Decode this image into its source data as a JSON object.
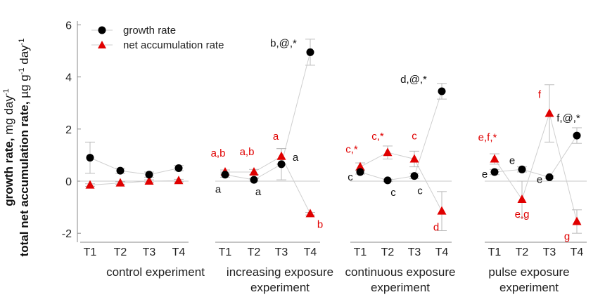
{
  "chart_data": {
    "type": "scatter",
    "ylabel_line1": "growth rate,",
    "ylabel_line1_unit": "mg day",
    "ylabel_line1_sup": "-1",
    "ylabel_line2": "total net accumulation rate,",
    "ylabel_line2_unit": "µg g",
    "ylabel_line2_sup1": "-1",
    "ylabel_line2_mid": " day",
    "ylabel_line2_sup2": "-1",
    "ylim": [
      -2.5,
      6.5
    ],
    "yticks": [
      -2,
      0,
      2,
      4,
      6
    ],
    "legend": [
      {
        "name": "growth rate",
        "marker": "circle",
        "color": "#000000"
      },
      {
        "name": "net accumulation rate",
        "marker": "triangle",
        "color": "#e00000"
      }
    ],
    "groups": [
      {
        "label_lines": [
          "control experiment"
        ],
        "categories": [
          "T1",
          "T2",
          "T3",
          "T4"
        ],
        "growth": [
          0.9,
          0.4,
          0.25,
          0.5
        ],
        "growth_err": [
          0.6,
          0.1,
          0.1,
          0.1
        ],
        "growth_labels": [
          "",
          "",
          "",
          ""
        ],
        "accum": [
          -0.15,
          -0.07,
          0.0,
          0.02
        ],
        "accum_err": [
          0.05,
          0.05,
          0.05,
          0.05
        ],
        "accum_labels": [
          "",
          "",
          "",
          ""
        ]
      },
      {
        "label_lines": [
          "increasing exposure",
          "experiment"
        ],
        "categories": [
          "T1",
          "T2",
          "T3",
          "T4"
        ],
        "growth": [
          0.25,
          0.05,
          0.65,
          4.95
        ],
        "growth_err": [
          0.1,
          0.05,
          0.6,
          0.5
        ],
        "growth_labels": [
          "a",
          "a",
          "a",
          "b,@,*"
        ],
        "accum": [
          0.35,
          0.35,
          0.95,
          -1.25
        ],
        "accum_err": [
          0.08,
          0.1,
          0.3,
          0.05
        ],
        "accum_labels": [
          "a,b",
          "a,b",
          "a",
          "b"
        ]
      },
      {
        "label_lines": [
          "continuous exposure",
          "experiment"
        ],
        "categories": [
          "T1",
          "T2",
          "T3",
          "T4"
        ],
        "growth": [
          0.35,
          0.03,
          0.2,
          3.45
        ],
        "growth_err": [
          0.08,
          0.05,
          0.1,
          0.3
        ],
        "growth_labels": [
          "c",
          "c",
          "c",
          "d,@,*"
        ],
        "accum": [
          0.55,
          1.1,
          0.85,
          -1.15
        ],
        "accum_err": [
          0.15,
          0.25,
          0.3,
          0.75
        ],
        "accum_labels": [
          "c,*",
          "c,*",
          "c",
          "d"
        ]
      },
      {
        "label_lines": [
          "pulse exposure",
          "experiment"
        ],
        "categories": [
          "T1",
          "T2",
          "T3",
          "T4"
        ],
        "growth": [
          0.35,
          0.45,
          0.15,
          1.75
        ],
        "growth_err": [
          0.1,
          0.1,
          0.05,
          0.3
        ],
        "growth_labels": [
          "e",
          "e",
          "e",
          "f,@,*"
        ],
        "accum": [
          0.85,
          -0.7,
          2.6,
          -1.55
        ],
        "accum_err": [
          0.2,
          0.7,
          1.1,
          0.45
        ],
        "accum_labels": [
          "e,f,*",
          "e,g",
          "f",
          "g"
        ]
      }
    ]
  }
}
